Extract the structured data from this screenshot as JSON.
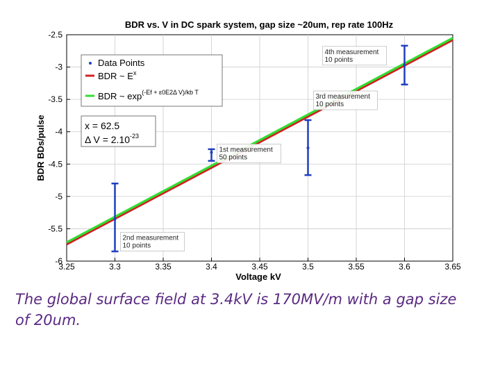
{
  "chart_data": {
    "type": "line",
    "title": "BDR vs. V in DC spark system, gap size ~20um, rep rate 100Hz",
    "xlabel": "Voltage kV",
    "ylabel": "BDR BDs/pulse",
    "xlim": [
      3.25,
      3.65
    ],
    "ylim": [
      -6,
      -2.5
    ],
    "x_ticks": [
      3.25,
      3.3,
      3.35,
      3.4,
      3.45,
      3.5,
      3.55,
      3.6,
      3.65
    ],
    "x_tick_labels": [
      "3.25",
      "3.3",
      "3.35",
      "3.4",
      "3.45",
      "3.5",
      "3.55",
      "3.6",
      "3.65"
    ],
    "y_ticks": [
      -2.5,
      -3,
      -3.5,
      -4,
      -4.5,
      -5,
      -5.5,
      -6
    ],
    "y_tick_labels": [
      "-2.5",
      "-3",
      "-3.5",
      "-4",
      "-4.5",
      "-5",
      "-5.5",
      "-6"
    ],
    "grid": true,
    "legend_position": "top-left",
    "data_points": [
      {
        "x": 3.3,
        "y": -5.35,
        "err_low": -5.85,
        "err_high": -4.8,
        "label_lines": [
          "2nd measurement",
          "10 points"
        ]
      },
      {
        "x": 3.4,
        "y": -4.32,
        "err_low": -4.45,
        "err_high": -4.27,
        "label_lines": [
          "1st measurement",
          "50 points"
        ]
      },
      {
        "x": 3.5,
        "y": -4.25,
        "err_low": -4.67,
        "err_high": -3.82,
        "label_lines": [
          "3rd measurement",
          "10 points"
        ]
      },
      {
        "x": 3.6,
        "y": -2.97,
        "err_low": -3.27,
        "err_high": -2.67,
        "label_lines": [
          "4th measurement",
          "10 points"
        ]
      }
    ],
    "series": [
      {
        "name": "Data Points",
        "kind": "points",
        "color": "#1f3fbf"
      },
      {
        "name": "BDR ~ E^x",
        "kind": "line",
        "color": "#d02020",
        "x": [
          3.25,
          3.65
        ],
        "y": [
          -5.74,
          -2.58
        ]
      },
      {
        "name": "BDR ~ exp((-Ef + ε0E²ΔV)/kbT)",
        "kind": "line",
        "color": "#33dd33",
        "x": [
          3.25,
          3.65
        ],
        "y": [
          -5.71,
          -2.55
        ]
      }
    ],
    "legend": {
      "entries": [
        {
          "base": "Data Points",
          "sup": ""
        },
        {
          "base": "BDR ~ E",
          "sup": "x"
        },
        {
          "base": "BDR ~ exp",
          "sup": "(-E",
          "tail": "f + ε0E2Δ V)/kb T"
        }
      ]
    },
    "params": {
      "x_line": "x = 62.5",
      "dv_base": "Δ V = 2.10",
      "dv_sup": "-23"
    },
    "colors": {
      "error_bar": "#1f3fbf",
      "fit_power": "#d02020",
      "fit_exp": "#33dd33",
      "grid": "#cccccc"
    }
  },
  "caption": "The global surface field at 3.4kV is 170MV/m with a gap size of 20um."
}
